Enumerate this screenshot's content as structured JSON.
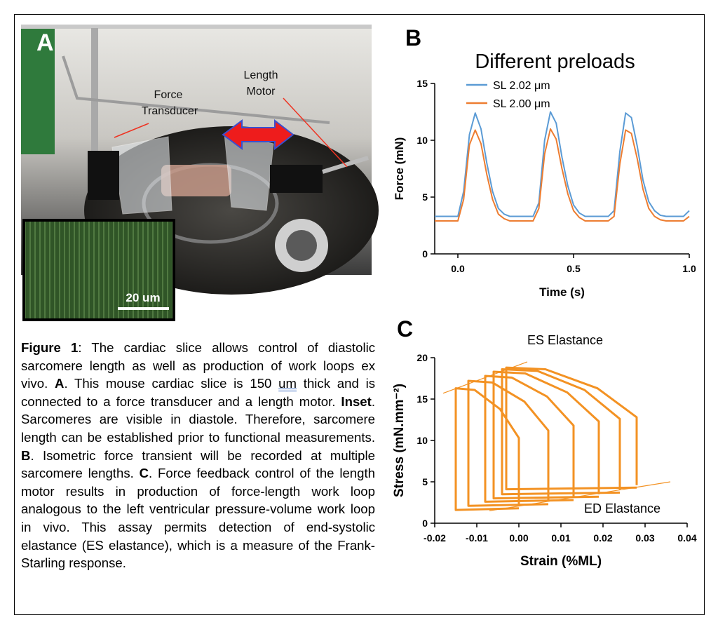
{
  "photo": {
    "panel_label": "A",
    "force_label": [
      "Force",
      "Transducer"
    ],
    "motor_label": [
      "Length",
      "Motor"
    ],
    "scale_bar": "20 um"
  },
  "caption": [
    "Figure 1",
    ": The cardiac slice allows control of diastolic sarcomere length as well as production of work loops ex vivo. ",
    "A",
    ". This mouse cardiac slice is 150 ",
    "um",
    " thick and is connected to a force transducer and a length motor. ",
    "Inset",
    ". Sarcomeres are visible in diastole. Therefore, sarcomere length can be established prior to functional measurements. ",
    "B",
    ". Isometric force transient will be recorded at multiple sarcomere lengths. ",
    "C",
    ". Force feedback control of the length motor results in production of force-length work loop analogous to the left ventricular pressure-volume work loop in vivo. This assay permits detection of end-systolic elastance (ES elastance), which is a measure of the Frank-Starling response."
  ],
  "chart_data": [
    {
      "type": "line",
      "panel_label": "B",
      "title": "Different preloads",
      "x_label": "Time (s)",
      "y_label": "Force  (mN)",
      "xlim": [
        -0.1,
        1.0
      ],
      "xticks": [
        {
          "value": 0,
          "label": "0.0"
        },
        0.5,
        {
          "value": 1,
          "label": "1.0"
        }
      ],
      "ylim": [
        0,
        15
      ],
      "yticks": [
        0,
        5,
        10,
        15
      ],
      "x": [
        -0.1,
        -0.075,
        -0.05,
        -0.025,
        0,
        0.025,
        0.05,
        0.075,
        0.1,
        0.125,
        0.15,
        0.175,
        0.2,
        0.225,
        0.25,
        0.275,
        0.3,
        0.325,
        0.35,
        0.375,
        0.4,
        0.425,
        0.45,
        0.475,
        0.5,
        0.525,
        0.55,
        0.575,
        0.6,
        0.625,
        0.65,
        0.675,
        0.7,
        0.725,
        0.75,
        0.775,
        0.8,
        0.825,
        0.85,
        0.875,
        0.9,
        0.925,
        0.95,
        0.975,
        1.0
      ],
      "series": [
        {
          "name": "SL 2.02 μm",
          "color": "#5b9bd5",
          "values": [
            3.3,
            3.3,
            3.3,
            3.3,
            3.3,
            5.5,
            10.5,
            12.4,
            11,
            8,
            5.5,
            4,
            3.5,
            3.3,
            3.3,
            3.3,
            3.3,
            3.3,
            4.5,
            10,
            12.5,
            11.5,
            8.5,
            6,
            4.3,
            3.6,
            3.3,
            3.3,
            3.3,
            3.3,
            3.3,
            3.8,
            9,
            12.4,
            12,
            9.5,
            6.5,
            4.6,
            3.8,
            3.4,
            3.3,
            3.3,
            3.3,
            3.3,
            3.8
          ]
        },
        {
          "name": "SL 2.00 μm",
          "color": "#ed7d31",
          "values": [
            2.9,
            2.9,
            2.9,
            2.9,
            2.9,
            4.8,
            9.6,
            10.9,
            9.7,
            7.0,
            4.8,
            3.5,
            3.1,
            2.9,
            2.9,
            2.9,
            2.9,
            2.9,
            4.0,
            8.8,
            11.0,
            10.1,
            7.5,
            5.3,
            3.8,
            3.2,
            2.9,
            2.9,
            2.9,
            2.9,
            2.9,
            3.3,
            7.9,
            10.9,
            10.6,
            8.4,
            5.7,
            4.0,
            3.3,
            3.0,
            2.9,
            2.9,
            2.9,
            2.9,
            3.3
          ]
        }
      ]
    },
    {
      "type": "line",
      "panel_label": "C",
      "x_label": "Strain (%ML)",
      "y_label": "Stress (mN.mm⁻²)",
      "xlim": [
        -0.02,
        0.04
      ],
      "xticks": [
        -0.02,
        -0.01,
        {
          "value": 0,
          "label": "0.00"
        },
        0.01,
        0.02,
        0.03,
        0.04
      ],
      "ylim": [
        0,
        20
      ],
      "yticks": [
        0,
        5,
        10,
        15,
        20
      ],
      "color": "#f39223",
      "series": [
        {
          "x": [
            0.0,
            -0.015,
            -0.015,
            -0.0105,
            -0.0045,
            0.0,
            0.0
          ],
          "y": [
            1.8,
            1.6,
            16.3,
            16.1,
            13.8,
            10.3,
            2.1
          ]
        },
        {
          "x": [
            0.007,
            -0.012,
            -0.012,
            -0.0063,
            0.0013,
            0.007,
            0.007
          ],
          "y": [
            2.3,
            2.1,
            17.2,
            17.0,
            14.7,
            11.2,
            2.6
          ]
        },
        {
          "x": [
            0.013,
            -0.008,
            -0.008,
            -0.0017,
            0.0067,
            0.013,
            0.013
          ],
          "y": [
            2.8,
            2.6,
            17.8,
            17.6,
            15.3,
            11.8,
            3.1
          ]
        },
        {
          "x": [
            0.019,
            -0.006,
            -0.006,
            0.0015,
            0.0115,
            0.019,
            0.019
          ],
          "y": [
            3.2,
            3.0,
            18.3,
            18.1,
            15.8,
            12.3,
            3.5
          ]
        },
        {
          "x": [
            0.024,
            -0.004,
            -0.004,
            0.0044,
            0.0156,
            0.024,
            0.024
          ],
          "y": [
            3.7,
            3.5,
            18.6,
            18.4,
            16.1,
            12.6,
            4.0
          ]
        },
        {
          "x": [
            0.028,
            -0.003,
            -0.003,
            0.0063,
            0.0187,
            0.028,
            0.028
          ],
          "y": [
            4.3,
            4.1,
            18.8,
            18.6,
            16.3,
            12.8,
            4.6
          ]
        }
      ],
      "annotations": [
        {
          "text": "ES Elastance",
          "x": [
            -0.018,
            0.002
          ],
          "y": [
            15.7,
            19.5
          ]
        },
        {
          "text": "ED Elastance",
          "x": [
            -0.007,
            0.036
          ],
          "y": [
            1.5,
            5.0
          ]
        }
      ]
    }
  ]
}
